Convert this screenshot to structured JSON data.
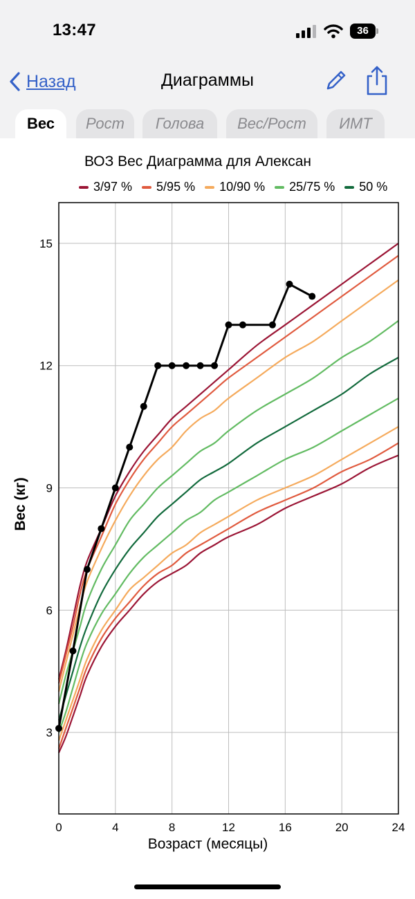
{
  "status": {
    "time": "13:47",
    "battery": "36",
    "icons": [
      "signal-icon",
      "wifi-icon",
      "battery-icon"
    ]
  },
  "nav": {
    "back_label": "Назад",
    "title": "Диаграммы",
    "edit_icon": "pencil-icon",
    "share_icon": "share-icon",
    "accent": "#3461c8"
  },
  "tabs": [
    {
      "label": "Вес",
      "active": true
    },
    {
      "label": "Рост",
      "active": false
    },
    {
      "label": "Голова",
      "active": false
    },
    {
      "label": "Вес/Рост",
      "active": false
    },
    {
      "label": "ИМТ",
      "active": false
    }
  ],
  "chart_data": {
    "type": "line",
    "title": "ВОЗ Вес Диаграмма для Алексан",
    "xlabel": "Возраст (месяцы)",
    "ylabel": "Вес (кг)",
    "xlim": [
      0,
      24
    ],
    "ylim": [
      1,
      16
    ],
    "xticks": [
      0,
      4,
      8,
      12,
      16,
      20,
      24
    ],
    "yticks": [
      3,
      6,
      9,
      12,
      15
    ],
    "grid": true,
    "legend": [
      {
        "label": "3/97 %",
        "color": "#9b1535"
      },
      {
        "label": "5/95 %",
        "color": "#e05a3e"
      },
      {
        "label": "10/90 %",
        "color": "#f5aa5c"
      },
      {
        "label": "25/75 %",
        "color": "#62bb62"
      },
      {
        "label": "50 %",
        "color": "#126a3c"
      }
    ],
    "percentile_x": [
      0,
      0.5,
      1,
      1.5,
      2,
      3,
      4,
      5,
      6,
      7,
      8,
      9,
      10,
      11,
      12,
      14,
      16,
      18,
      20,
      22,
      24
    ],
    "percentile_series": [
      {
        "name": "97 %",
        "group": "3/97 %",
        "color": "#9b1535",
        "values": [
          4.3,
          5.0,
          5.8,
          6.6,
          7.2,
          8.0,
          8.8,
          9.4,
          9.9,
          10.3,
          10.7,
          11.0,
          11.3,
          11.6,
          11.9,
          12.5,
          13.0,
          13.5,
          14.0,
          14.5,
          15.0
        ]
      },
      {
        "name": "95 %",
        "group": "5/95 %",
        "color": "#e05a3e",
        "values": [
          4.2,
          4.9,
          5.6,
          6.4,
          7.0,
          7.8,
          8.6,
          9.2,
          9.7,
          10.1,
          10.5,
          10.8,
          11.1,
          11.4,
          11.7,
          12.2,
          12.7,
          13.2,
          13.7,
          14.2,
          14.7
        ]
      },
      {
        "name": "90 %",
        "group": "10/90 %",
        "color": "#f5aa5c",
        "values": [
          4.0,
          4.7,
          5.4,
          6.1,
          6.7,
          7.5,
          8.2,
          8.8,
          9.3,
          9.7,
          10.0,
          10.4,
          10.7,
          10.9,
          11.2,
          11.7,
          12.2,
          12.6,
          13.1,
          13.6,
          14.1
        ]
      },
      {
        "name": "75 %",
        "group": "25/75 %",
        "color": "#62bb62",
        "values": [
          3.7,
          4.4,
          5.0,
          5.6,
          6.2,
          7.0,
          7.6,
          8.2,
          8.6,
          9.0,
          9.3,
          9.6,
          9.9,
          10.1,
          10.4,
          10.9,
          11.3,
          11.7,
          12.2,
          12.6,
          13.1
        ]
      },
      {
        "name": "50 %",
        "group": "50 %",
        "color": "#126a3c",
        "values": [
          3.3,
          3.9,
          4.5,
          5.1,
          5.6,
          6.4,
          7.0,
          7.5,
          7.9,
          8.3,
          8.6,
          8.9,
          9.2,
          9.4,
          9.6,
          10.1,
          10.5,
          10.9,
          11.3,
          11.8,
          12.2
        ]
      },
      {
        "name": "25 %",
        "group": "25/75 %",
        "color": "#62bb62",
        "values": [
          3.0,
          3.5,
          4.1,
          4.7,
          5.2,
          5.9,
          6.4,
          6.9,
          7.3,
          7.6,
          7.9,
          8.2,
          8.4,
          8.7,
          8.9,
          9.3,
          9.7,
          10.0,
          10.4,
          10.8,
          11.2
        ]
      },
      {
        "name": "10 %",
        "group": "10/90 %",
        "color": "#f5aa5c",
        "values": [
          2.8,
          3.3,
          3.8,
          4.3,
          4.8,
          5.5,
          6.0,
          6.5,
          6.8,
          7.1,
          7.4,
          7.6,
          7.9,
          8.1,
          8.3,
          8.7,
          9.0,
          9.3,
          9.7,
          10.1,
          10.5
        ]
      },
      {
        "name": "5 %",
        "group": "5/95 %",
        "color": "#e05a3e",
        "values": [
          2.6,
          3.1,
          3.6,
          4.1,
          4.6,
          5.3,
          5.8,
          6.2,
          6.6,
          6.9,
          7.1,
          7.4,
          7.6,
          7.8,
          8.0,
          8.4,
          8.7,
          9.0,
          9.4,
          9.7,
          10.1
        ]
      },
      {
        "name": "3 %",
        "group": "3/97 %",
        "color": "#9b1535",
        "values": [
          2.5,
          2.9,
          3.4,
          3.9,
          4.4,
          5.1,
          5.6,
          6.0,
          6.4,
          6.7,
          6.9,
          7.1,
          7.4,
          7.6,
          7.8,
          8.1,
          8.5,
          8.8,
          9.1,
          9.5,
          9.8
        ]
      }
    ],
    "child_series": {
      "name": "Алексан",
      "color": "#000000",
      "points": [
        {
          "x": 0,
          "y": 3.1
        },
        {
          "x": 1,
          "y": 5.0
        },
        {
          "x": 2,
          "y": 7.0
        },
        {
          "x": 3,
          "y": 8.0
        },
        {
          "x": 4,
          "y": 9.0
        },
        {
          "x": 5,
          "y": 10.0
        },
        {
          "x": 6,
          "y": 11.0
        },
        {
          "x": 7,
          "y": 12.0
        },
        {
          "x": 8,
          "y": 12.0
        },
        {
          "x": 9,
          "y": 12.0
        },
        {
          "x": 10,
          "y": 12.0
        },
        {
          "x": 11,
          "y": 12.0
        },
        {
          "x": 12,
          "y": 13.0
        },
        {
          "x": 13,
          "y": 13.0
        },
        {
          "x": 15.1,
          "y": 13.0
        },
        {
          "x": 16.3,
          "y": 14.0
        },
        {
          "x": 17.9,
          "y": 13.7
        }
      ]
    }
  }
}
